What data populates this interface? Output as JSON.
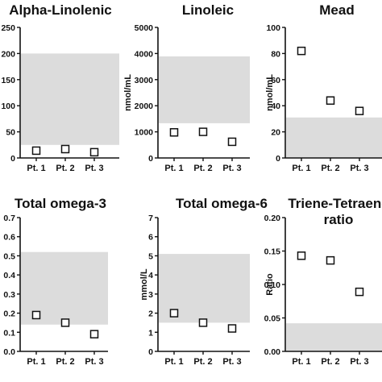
{
  "chart_data": [
    {
      "type": "scatter",
      "title": "Alpha-Linolenic",
      "title_line2": "",
      "ylabel": "",
      "categories": [
        "Pt. 1",
        "Pt. 2",
        "Pt. 3"
      ],
      "values": [
        14,
        17,
        11
      ],
      "ylim": [
        0,
        250
      ],
      "yticks": [
        "0",
        "50",
        "100",
        "150",
        "200",
        "250"
      ],
      "yticks_values": [
        0,
        50,
        100,
        150,
        200,
        250
      ],
      "reference_range": [
        25,
        200
      ],
      "marker": "open-square",
      "band_color": "#dcdcdc"
    },
    {
      "type": "scatter",
      "title": "Linoleic",
      "title_line2": "",
      "ylabel": "nmol/mL",
      "categories": [
        "Pt. 1",
        "Pt. 2",
        "Pt. 3"
      ],
      "values": [
        980,
        1000,
        620
      ],
      "ylim": [
        0,
        5000
      ],
      "yticks": [
        "0",
        "1000",
        "2000",
        "3000",
        "4000",
        "5000"
      ],
      "yticks_values": [
        0,
        1000,
        2000,
        3000,
        4000,
        5000
      ],
      "reference_range": [
        1330,
        3890
      ],
      "marker": "open-square",
      "band_color": "#dcdcdc"
    },
    {
      "type": "scatter",
      "title": "Mead",
      "title_line2": "",
      "ylabel": "nmol/mL",
      "categories": [
        "Pt. 1",
        "Pt. 2",
        "Pt. 3"
      ],
      "values": [
        82,
        44,
        36
      ],
      "ylim": [
        0,
        100
      ],
      "yticks": [
        "0",
        "20",
        "40",
        "60",
        "80",
        "100"
      ],
      "yticks_values": [
        0,
        20,
        40,
        60,
        80,
        100
      ],
      "reference_range": [
        0,
        31
      ],
      "marker": "open-square",
      "band_color": "#dcdcdc"
    },
    {
      "type": "scatter",
      "title": "Total omega-3",
      "title_line2": "",
      "ylabel": "",
      "categories": [
        "Pt. 1",
        "Pt. 2",
        "Pt. 3"
      ],
      "values": [
        0.19,
        0.15,
        0.09
      ],
      "ylim": [
        0,
        0.7
      ],
      "yticks": [
        "0.0",
        "0.1",
        "0.2",
        "0.3",
        "0.4",
        "0.5",
        "0.6",
        "0.7"
      ],
      "yticks_values": [
        0,
        0.1,
        0.2,
        0.3,
        0.4,
        0.5,
        0.6,
        0.7
      ],
      "reference_range": [
        0.14,
        0.52
      ],
      "marker": "open-square",
      "band_color": "#dcdcdc"
    },
    {
      "type": "scatter",
      "title": "Total omega-6",
      "title_line2": "",
      "ylabel": "mmol/L",
      "categories": [
        "Pt. 1",
        "Pt. 2",
        "Pt. 3"
      ],
      "values": [
        2.0,
        1.5,
        1.2
      ],
      "ylim": [
        0,
        7
      ],
      "yticks": [
        "0",
        "1",
        "2",
        "3",
        "4",
        "5",
        "6",
        "7"
      ],
      "yticks_values": [
        0,
        1,
        2,
        3,
        4,
        5,
        6,
        7
      ],
      "reference_range": [
        1.5,
        5.1
      ],
      "marker": "open-square",
      "band_color": "#dcdcdc"
    },
    {
      "type": "scatter",
      "title": "Triene-Tetraene",
      "title_line2": "ratio",
      "ylabel": "Ratio",
      "categories": [
        "Pt. 1",
        "Pt. 2",
        "Pt. 3"
      ],
      "values": [
        0.143,
        0.136,
        0.089
      ],
      "ylim": [
        0,
        0.2
      ],
      "yticks": [
        "0.00",
        "0.05",
        "0.10",
        "0.15",
        "0.20"
      ],
      "yticks_values": [
        0,
        0.05,
        0.1,
        0.15,
        0.2
      ],
      "reference_range": [
        0,
        0.042
      ],
      "marker": "open-square",
      "band_color": "#dcdcdc"
    }
  ]
}
